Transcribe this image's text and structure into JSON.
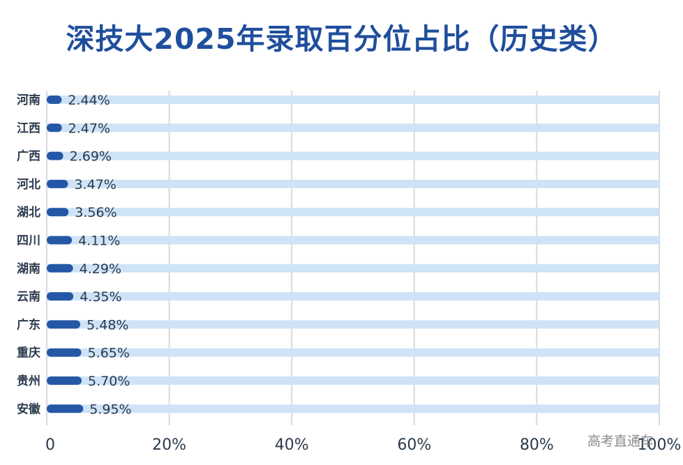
{
  "watermark": "高考直通车",
  "chart_data": {
    "type": "bar",
    "orientation": "horizontal",
    "title": "深技大2025年录取百分位占比（历史类）",
    "categories": [
      "河南",
      "江西",
      "广西",
      "河北",
      "湖北",
      "四川",
      "湖南",
      "云南",
      "广东",
      "重庆",
      "贵州",
      "安徽"
    ],
    "values": [
      2.44,
      2.47,
      2.69,
      3.47,
      3.56,
      4.11,
      4.29,
      4.35,
      5.48,
      5.65,
      5.7,
      5.95
    ],
    "value_labels": [
      "2.44%",
      "2.47%",
      "2.69%",
      "3.47%",
      "3.56%",
      "4.11%",
      "4.29%",
      "4.35%",
      "5.48%",
      "5.65%",
      "5.70%",
      "5.95%"
    ],
    "xlim": [
      0,
      100
    ],
    "x_ticks": [
      0,
      20,
      40,
      60,
      80,
      100
    ],
    "x_tick_labels": [
      "0",
      "20%",
      "40%",
      "60%",
      "80%",
      "100%"
    ],
    "grid": true,
    "colors": {
      "bar": "#2457a6",
      "track": "#cfe3f6",
      "grid": "#d9d9d9",
      "title": "#1f4e9c",
      "label": "#2a3a4d"
    }
  }
}
